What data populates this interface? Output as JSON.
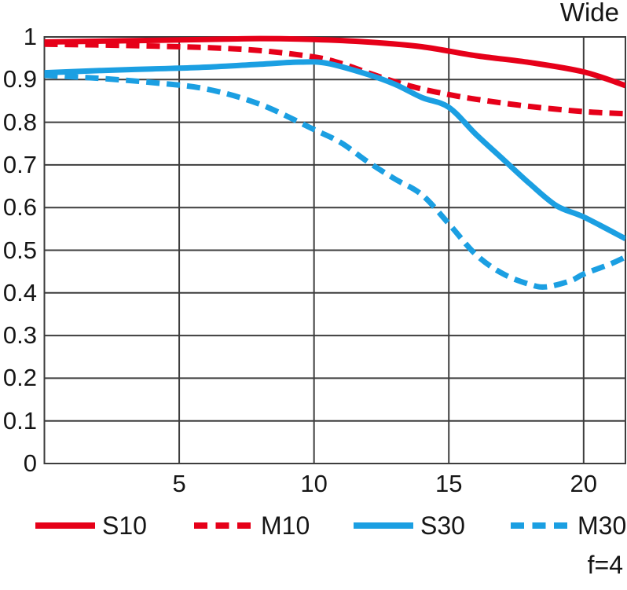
{
  "title": "Wide",
  "aperture_label": "f=4",
  "colors": {
    "red": "#e60019",
    "blue": "#1b9fe2",
    "grid": "#3d3d3d",
    "text": "#161616"
  },
  "chart_data": {
    "type": "line",
    "title": "Wide",
    "subtitle": "f=4",
    "xlabel": "",
    "ylabel": "",
    "xlim": [
      0,
      21.55
    ],
    "ylim": [
      0,
      1
    ],
    "x_ticks": [
      5,
      10,
      15,
      20
    ],
    "x_tick_labels": [
      "5",
      "10",
      "15",
      "20"
    ],
    "y_ticks": [
      0,
      0.1,
      0.2,
      0.3,
      0.4,
      0.5,
      0.6,
      0.7,
      0.8,
      0.9,
      1
    ],
    "y_tick_labels": [
      "0",
      "0.1",
      "0.2",
      "0.3",
      "0.4",
      "0.5",
      "0.6",
      "0.7",
      "0.8",
      "0.9",
      "1"
    ],
    "grid": true,
    "legend_position": "bottom",
    "series": [
      {
        "name": "S10",
        "color": "#e60019",
        "style": "solid",
        "points": [
          [
            0,
            0.988
          ],
          [
            3,
            0.991
          ],
          [
            6,
            0.994
          ],
          [
            8,
            0.996
          ],
          [
            10,
            0.994
          ],
          [
            12,
            0.988
          ],
          [
            14,
            0.977
          ],
          [
            16,
            0.956
          ],
          [
            18,
            0.94
          ],
          [
            20,
            0.918
          ],
          [
            21.55,
            0.886
          ]
        ]
      },
      {
        "name": "M10",
        "color": "#e60019",
        "style": "dashed",
        "points": [
          [
            0,
            0.983
          ],
          [
            3,
            0.98
          ],
          [
            6,
            0.975
          ],
          [
            8,
            0.968
          ],
          [
            10,
            0.953
          ],
          [
            11,
            0.938
          ],
          [
            12,
            0.916
          ],
          [
            13,
            0.895
          ],
          [
            14,
            0.878
          ],
          [
            15,
            0.865
          ],
          [
            16,
            0.854
          ],
          [
            18,
            0.837
          ],
          [
            20,
            0.825
          ],
          [
            21.55,
            0.82
          ]
        ]
      },
      {
        "name": "S30",
        "color": "#1b9fe2",
        "style": "solid",
        "points": [
          [
            0,
            0.916
          ],
          [
            2,
            0.921
          ],
          [
            4,
            0.925
          ],
          [
            6,
            0.929
          ],
          [
            8,
            0.936
          ],
          [
            9.5,
            0.941
          ],
          [
            10.5,
            0.938
          ],
          [
            12,
            0.912
          ],
          [
            13,
            0.889
          ],
          [
            14,
            0.858
          ],
          [
            15,
            0.835
          ],
          [
            16,
            0.772
          ],
          [
            17,
            0.714
          ],
          [
            18,
            0.656
          ],
          [
            19,
            0.604
          ],
          [
            20,
            0.578
          ],
          [
            21.55,
            0.527
          ]
        ]
      },
      {
        "name": "M30",
        "color": "#1b9fe2",
        "style": "dashed",
        "points": [
          [
            0,
            0.91
          ],
          [
            2,
            0.903
          ],
          [
            4,
            0.893
          ],
          [
            6,
            0.878
          ],
          [
            8,
            0.842
          ],
          [
            10,
            0.783
          ],
          [
            11,
            0.752
          ],
          [
            12,
            0.707
          ],
          [
            13,
            0.667
          ],
          [
            14,
            0.63
          ],
          [
            15,
            0.562
          ],
          [
            16,
            0.49
          ],
          [
            17,
            0.445
          ],
          [
            18,
            0.42
          ],
          [
            18.6,
            0.414
          ],
          [
            19.5,
            0.428
          ],
          [
            20,
            0.444
          ],
          [
            21,
            0.468
          ],
          [
            21.55,
            0.484
          ]
        ]
      }
    ]
  }
}
